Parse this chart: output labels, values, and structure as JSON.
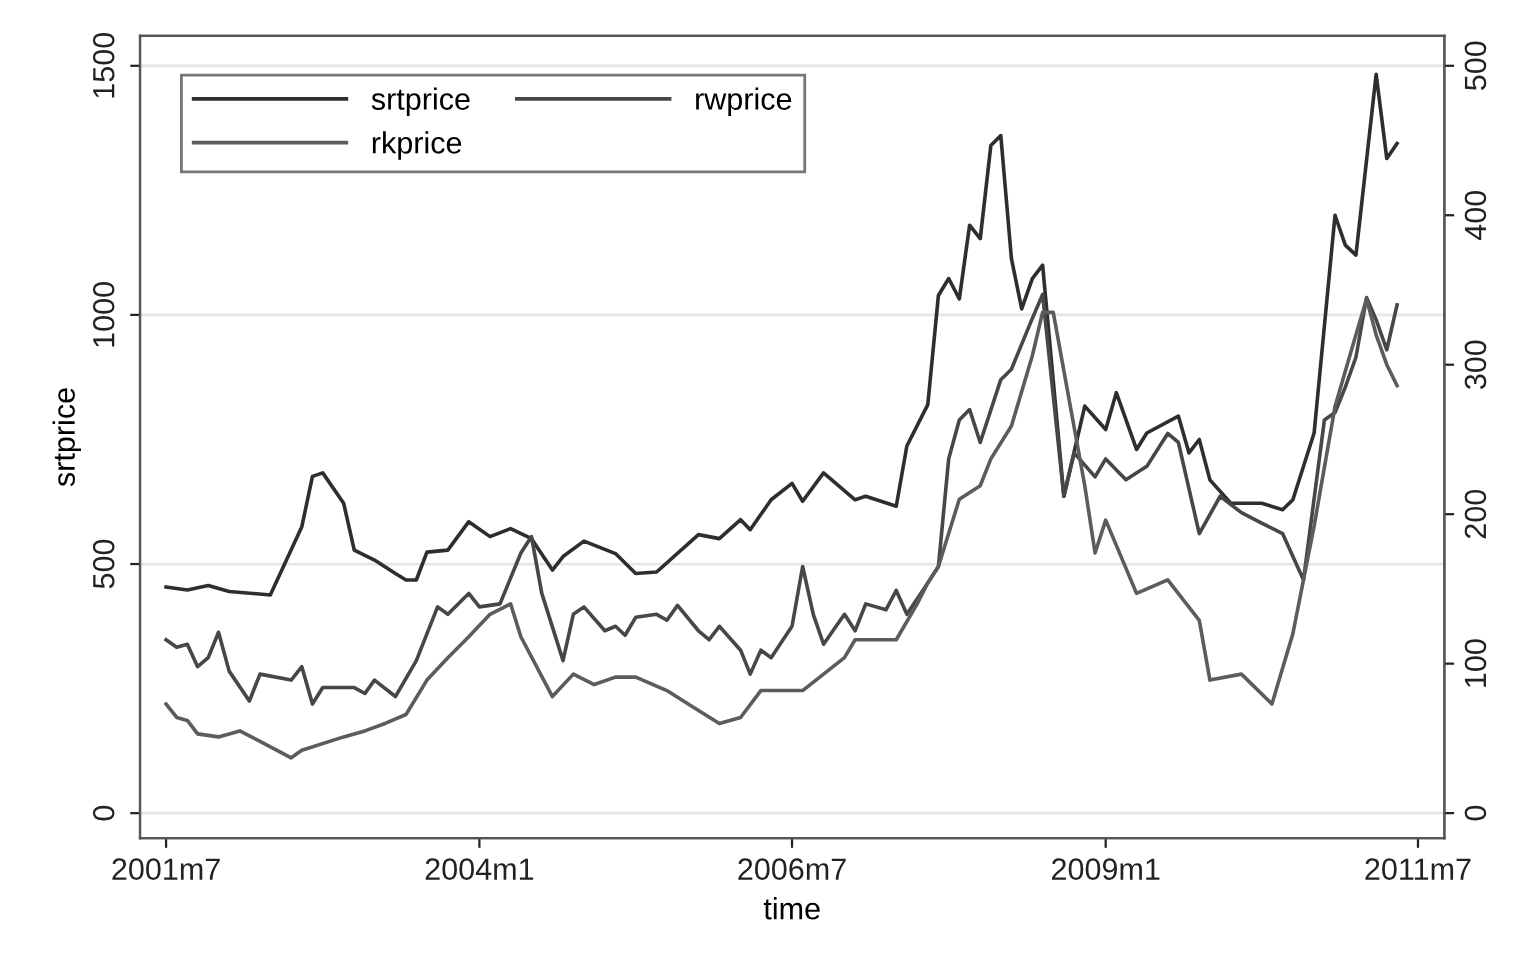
{
  "chart_data": {
    "type": "line",
    "xlabel": "time",
    "ylabel": "srtprice",
    "xlim": [
      "2001-04-16",
      "2011-09-16"
    ],
    "xticks": [
      {
        "value": "2001-07",
        "label": "2001m7"
      },
      {
        "value": "2004-01",
        "label": "2004m1"
      },
      {
        "value": "2006-07",
        "label": "2006m7"
      },
      {
        "value": "2009-01",
        "label": "2009m1"
      },
      {
        "value": "2011-07",
        "label": "2011m7"
      }
    ],
    "ylim": [
      -50,
      1560
    ],
    "yticks": [
      0,
      500,
      1000,
      1500
    ],
    "y2lim": [
      -16.7,
      520
    ],
    "y2ticks": [
      0,
      100,
      200,
      300,
      400,
      500
    ],
    "grid": "y",
    "legend": "top left",
    "line_style": "solid",
    "series": [
      {
        "name": "srtprice",
        "color": "#2e2e2e",
        "axis": "y",
        "x": [
          "2001-07",
          "2001-09",
          "2001-11",
          "2002-01",
          "2002-05",
          "2002-08",
          "2002-09",
          "2002-10",
          "2002-12",
          "2003-01",
          "2003-03",
          "2003-05",
          "2003-06",
          "2003-07",
          "2003-08",
          "2003-10",
          "2003-12",
          "2004-02",
          "2004-04",
          "2004-06",
          "2004-08",
          "2004-09",
          "2004-11",
          "2005-02",
          "2005-04",
          "2005-06",
          "2005-10",
          "2005-12",
          "2006-02",
          "2006-03",
          "2006-05",
          "2006-07",
          "2006-08",
          "2006-10",
          "2007-01",
          "2007-02",
          "2007-05",
          "2007-06",
          "2007-08",
          "2007-09",
          "2007-10",
          "2007-11",
          "2007-12",
          "2008-01",
          "2008-02",
          "2008-03",
          "2008-04",
          "2008-05",
          "2008-06",
          "2008-07",
          "2008-09",
          "2008-11",
          "2009-01",
          "2009-02",
          "2009-04",
          "2009-05",
          "2009-08",
          "2009-09",
          "2009-10",
          "2009-11",
          "2010-01",
          "2010-04",
          "2010-06",
          "2010-07",
          "2010-09",
          "2010-11",
          "2010-12",
          "2011-01",
          "2011-03",
          "2011-04",
          "2011-05"
        ],
        "values": [
          454,
          448,
          457,
          445,
          438,
          575,
          676,
          683,
          622,
          528,
          508,
          481,
          468,
          468,
          524,
          528,
          585,
          555,
          571,
          551,
          488,
          515,
          546,
          521,
          481,
          484,
          559,
          551,
          589,
          569,
          629,
          662,
          626,
          683,
          629,
          636,
          616,
          737,
          820,
          1039,
          1073,
          1032,
          1180,
          1153,
          1340,
          1360,
          1113,
          1012,
          1073,
          1100,
          636,
          817,
          770,
          844,
          730,
          763,
          797,
          723,
          750,
          669,
          622,
          622,
          609,
          629,
          763,
          1200,
          1140,
          1120,
          1483,
          1314,
          1344
        ]
      },
      {
        "name": "rwprice",
        "color": "#474747",
        "axis": "y2",
        "x": [
          "2001-07",
          "2001-08",
          "2001-09",
          "2001-10",
          "2001-11",
          "2001-12",
          "2002-01",
          "2002-03",
          "2002-04",
          "2002-07",
          "2002-08",
          "2002-09",
          "2002-10",
          "2003-01",
          "2003-02",
          "2003-03",
          "2003-05",
          "2003-07",
          "2003-09",
          "2003-10",
          "2003-12",
          "2004-01",
          "2004-03",
          "2004-05",
          "2004-06",
          "2004-07",
          "2004-09",
          "2004-10",
          "2004-11",
          "2005-01",
          "2005-02",
          "2005-03",
          "2005-04",
          "2005-06",
          "2005-07",
          "2005-08",
          "2005-10",
          "2005-11",
          "2005-12",
          "2006-02",
          "2006-03",
          "2006-04",
          "2006-05",
          "2006-07",
          "2006-08",
          "2006-09",
          "2006-10",
          "2006-12",
          "2007-01",
          "2007-02",
          "2007-04",
          "2007-05",
          "2007-06",
          "2007-08",
          "2007-09",
          "2007-10",
          "2007-11",
          "2007-12",
          "2008-01",
          "2008-03",
          "2008-04",
          "2008-06",
          "2008-07",
          "2008-09",
          "2008-10",
          "2008-12",
          "2009-01",
          "2009-03",
          "2009-05",
          "2009-07",
          "2009-08",
          "2009-10",
          "2009-12",
          "2010-02",
          "2010-04",
          "2010-06",
          "2010-08",
          "2010-10",
          "2010-11",
          "2010-12",
          "2011-01",
          "2011-02",
          "2011-03",
          "2011-04",
          "2011-05"
        ],
        "values": [
          116,
          111,
          113,
          98,
          104,
          121,
          95,
          75,
          93,
          89,
          98,
          73,
          84,
          84,
          80,
          89,
          78,
          102,
          138,
          133,
          147,
          138,
          140,
          174,
          185,
          147,
          102,
          133,
          138,
          122,
          125,
          119,
          131,
          133,
          129,
          139,
          122,
          116,
          125,
          109,
          93,
          109,
          104,
          125,
          165,
          133,
          113,
          133,
          122,
          140,
          136,
          149,
          133,
          154,
          165,
          237,
          263,
          270,
          248,
          290,
          297,
          331,
          347,
          212,
          241,
          225,
          237,
          223,
          232,
          254,
          248,
          187,
          212,
          201,
          194,
          187,
          156,
          263,
          268,
          285,
          305,
          345,
          330,
          310,
          340
        ]
      },
      {
        "name": "rkprice",
        "color": "#5c5c5c",
        "axis": "y2",
        "x": [
          "2001-07",
          "2001-08",
          "2001-09",
          "2001-10",
          "2001-12",
          "2002-02",
          "2002-04",
          "2002-07",
          "2002-08",
          "2002-12",
          "2003-02",
          "2003-04",
          "2003-06",
          "2003-08",
          "2003-10",
          "2003-12",
          "2004-02",
          "2004-04",
          "2004-05",
          "2004-08",
          "2004-10",
          "2004-12",
          "2005-02",
          "2005-04",
          "2005-07",
          "2005-09",
          "2005-12",
          "2006-02",
          "2006-04",
          "2006-06",
          "2006-08",
          "2006-10",
          "2006-12",
          "2007-01",
          "2007-05",
          "2007-07",
          "2007-08",
          "2007-09",
          "2007-11",
          "2008-01",
          "2008-02",
          "2008-04",
          "2008-06",
          "2008-07",
          "2008-08",
          "2008-11",
          "2008-12",
          "2009-01",
          "2009-04",
          "2009-07",
          "2009-10",
          "2009-11",
          "2010-02",
          "2010-05",
          "2010-07",
          "2010-09",
          "2010-11",
          "2011-01",
          "2011-02",
          "2011-03",
          "2011-04",
          "2011-05"
        ],
        "values": [
          73,
          64,
          62,
          53,
          51,
          55,
          48,
          37,
          42,
          51,
          55,
          60,
          66,
          89,
          104,
          118,
          133,
          140,
          118,
          78,
          93,
          86,
          91,
          91,
          82,
          73,
          60,
          64,
          82,
          82,
          82,
          93,
          104,
          116,
          116,
          140,
          154,
          165,
          210,
          219,
          237,
          259,
          306,
          335,
          335,
          219,
          174,
          196,
          147,
          156,
          129,
          89,
          93,
          73,
          120,
          192,
          272,
          320,
          344,
          320,
          300,
          286
        ]
      }
    ]
  }
}
